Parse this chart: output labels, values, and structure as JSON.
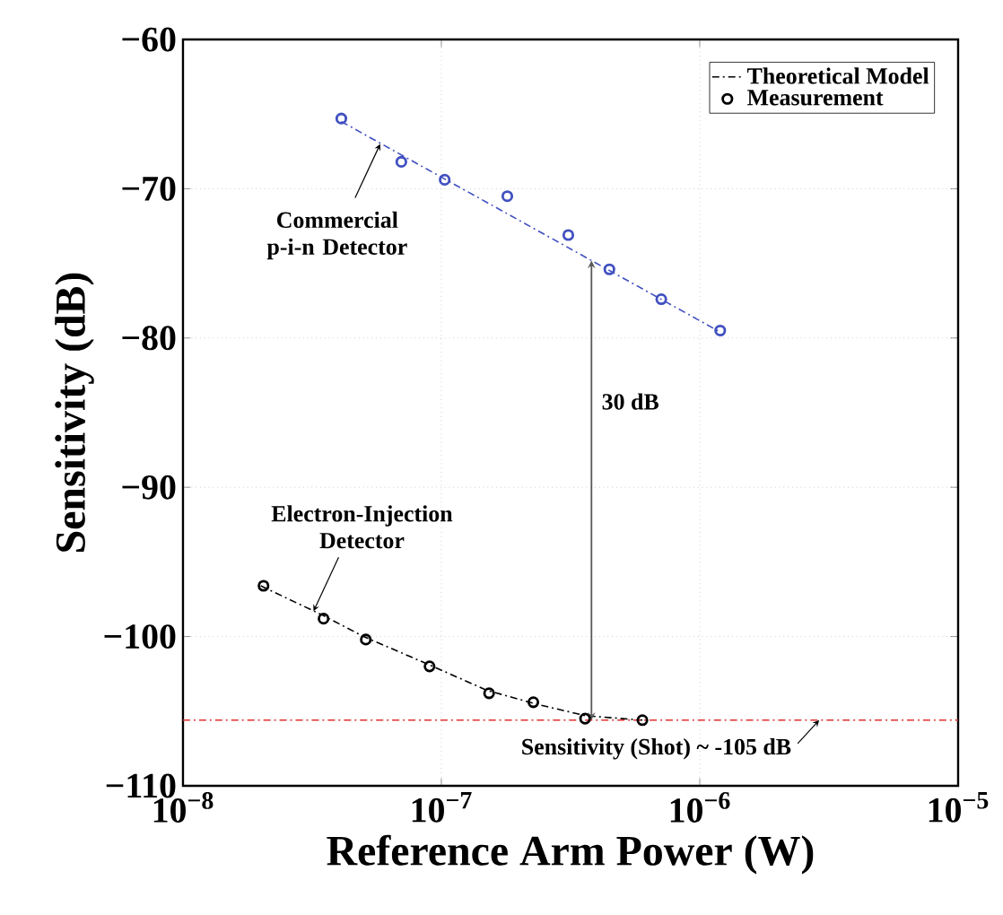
{
  "chart_data": {
    "type": "line",
    "xlabel": "Reference Arm Power (W)",
    "ylabel": "Sensitivity (dB)",
    "xlim": [
      1e-08,
      1e-05
    ],
    "ylim": [
      -110,
      -60
    ],
    "log": "x",
    "grid": true,
    "legend": "top right",
    "xticks": [
      {
        "value": 1e-08,
        "label": "10$^{−8}$"
      },
      {
        "value": 1e-07,
        "label": "10$^{−7}$"
      },
      {
        "value": 1e-06,
        "label": "10$^{−6}$"
      },
      {
        "value": 1e-05,
        "label": "10$^{−5}$"
      }
    ],
    "yticks": [
      {
        "value": -110,
        "label": "−110"
      },
      {
        "value": -100,
        "label": "−100"
      },
      {
        "value": -90,
        "label": "−90"
      },
      {
        "value": -80,
        "label": "−80"
      },
      {
        "value": -70,
        "label": "−70"
      },
      {
        "value": -60,
        "label": "−60"
      }
    ],
    "series": [
      {
        "name": "Theoretical Model",
        "line_style": "dashed",
        "marker": "none",
        "color": "#000000",
        "x": [
          2e-08,
          3.5e-08,
          5e-08,
          9e-08,
          1.5e-07,
          2.3e-07,
          3.6e-07,
          6e-07
        ],
        "values": [
          -96.6,
          -98.6,
          -100.0,
          -101.9,
          -103.6,
          -104.5,
          -105.3,
          -105.6
        ]
      },
      {
        "name": "Measurement",
        "type": "scatter",
        "marker": "circle",
        "color": "#000000",
        "x": [
          2.05e-08,
          3.5e-08,
          5.1e-08,
          9e-08,
          1.53e-07,
          2.27e-07,
          3.6e-07,
          6e-07
        ],
        "values": [
          -96.6,
          -98.8,
          -100.2,
          -102.0,
          -103.8,
          -104.4,
          -105.5,
          -105.6
        ]
      },
      {
        "line_style": "dashed",
        "marker": "none",
        "color": "#4050c0",
        "x": [
          4.1e-08,
          1.2e-06
        ],
        "values": [
          -65.5,
          -79.6
        ]
      },
      {
        "type": "scatter",
        "marker": "circle",
        "color": "#4050c0",
        "x": [
          4.1e-08,
          7e-08,
          1.03e-07,
          1.8e-07,
          3.1e-07,
          4.47e-07,
          7.1e-07,
          1.2e-06
        ],
        "values": [
          -65.3,
          -68.2,
          -69.4,
          -70.5,
          -73.1,
          -75.4,
          -77.4,
          -79.5
        ]
      }
    ],
    "ref_lines": [
      {
        "axis": "y",
        "value": -105.6,
        "color": "#e03030",
        "line_style": "dashed"
      }
    ],
    "annotations": [
      {
        "text": "Commercial p-i-n Detector",
        "x": 5.8e-08,
        "y": -67.0
      },
      {
        "text": "Electron-Injection Detector",
        "x": 3.2e-08,
        "y": -98.3
      },
      "30 dB",
      {
        "text": "Sensitivity (Shot) ~ -105 dB",
        "x": 2.9e-06,
        "y": -105.6
      }
    ]
  }
}
